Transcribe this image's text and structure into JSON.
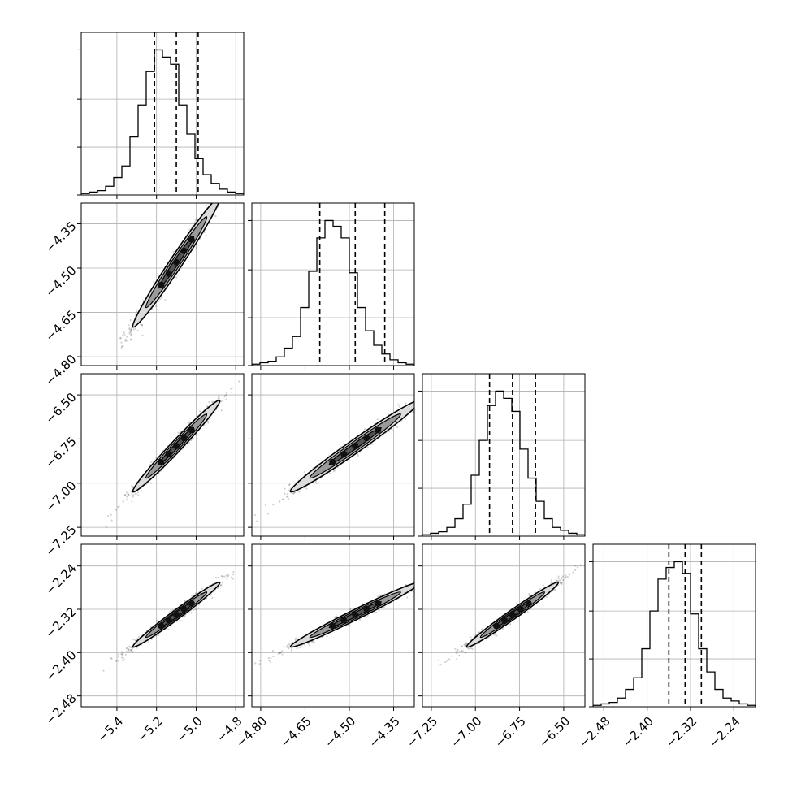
{
  "chart_data": {
    "type": "corner",
    "parameters": [
      {
        "range": [
          -5.58,
          -4.76
        ],
        "ticks": [
          -5.4,
          -5.2,
          -5.0,
          -4.8
        ],
        "tick_labels": [
          "−5.4",
          "−5.2",
          "−5.0",
          "−4.8"
        ],
        "median": -5.1,
        "q16": -5.21,
        "q84": -4.99,
        "sigma": 0.11
      },
      {
        "range": [
          -4.83,
          -4.28
        ],
        "ticks": [
          -4.8,
          -4.65,
          -4.5,
          -4.35
        ],
        "tick_labels": [
          "−4.80",
          "−4.65",
          "−4.50",
          "−4.35"
        ],
        "median": -4.48,
        "q16": -4.6,
        "q84": -4.38,
        "sigma": 0.11
      },
      {
        "range": [
          -7.3,
          -6.38
        ],
        "ticks": [
          -7.25,
          -7.0,
          -6.75,
          -6.5
        ],
        "tick_labels": [
          "−7.25",
          "−7.00",
          "−6.75",
          "−6.50"
        ],
        "median": -6.79,
        "q16": -6.92,
        "q84": -6.66,
        "sigma": 0.13
      },
      {
        "range": [
          -2.5,
          -2.2
        ],
        "ticks": [
          -2.48,
          -2.4,
          -2.32,
          -2.24
        ],
        "tick_labels": [
          "−2.48",
          "−2.40",
          "−2.32",
          "−2.24"
        ],
        "median": -2.33,
        "q16": -2.36,
        "q84": -2.3,
        "sigma": 0.03
      }
    ],
    "histograms": [
      {
        "bins": 20,
        "counts": [
          1,
          2,
          3,
          6,
          12,
          20,
          40,
          62,
          85,
          100,
          95,
          90,
          62,
          42,
          25,
          14,
          8,
          4,
          2,
          1
        ],
        "ylim": [
          0,
          112
        ],
        "ticks": [
          0,
          33,
          66,
          100
        ]
      },
      {
        "bins": 20,
        "counts": [
          1,
          2,
          3,
          6,
          12,
          20,
          40,
          65,
          88,
          100,
          96,
          88,
          64,
          40,
          24,
          14,
          8,
          4,
          2,
          1
        ],
        "ylim": [
          0,
          112
        ],
        "ticks": [
          0,
          33,
          66,
          100
        ]
      },
      {
        "bins": 20,
        "counts": [
          1,
          2,
          3,
          6,
          12,
          22,
          42,
          66,
          90,
          100,
          95,
          86,
          60,
          40,
          24,
          12,
          6,
          4,
          2,
          1
        ],
        "ylim": [
          0,
          112
        ],
        "ticks": [
          0,
          33,
          66,
          100
        ]
      },
      {
        "bins": 20,
        "counts": [
          1,
          2,
          3,
          6,
          12,
          20,
          40,
          66,
          88,
          96,
          100,
          92,
          64,
          40,
          24,
          12,
          6,
          4,
          2,
          1
        ],
        "ylim": [
          0,
          112
        ],
        "ticks": [
          0,
          33,
          66,
          100
        ]
      }
    ],
    "correlation": 0.985,
    "grid": true,
    "quantile_lines": "dashed"
  }
}
